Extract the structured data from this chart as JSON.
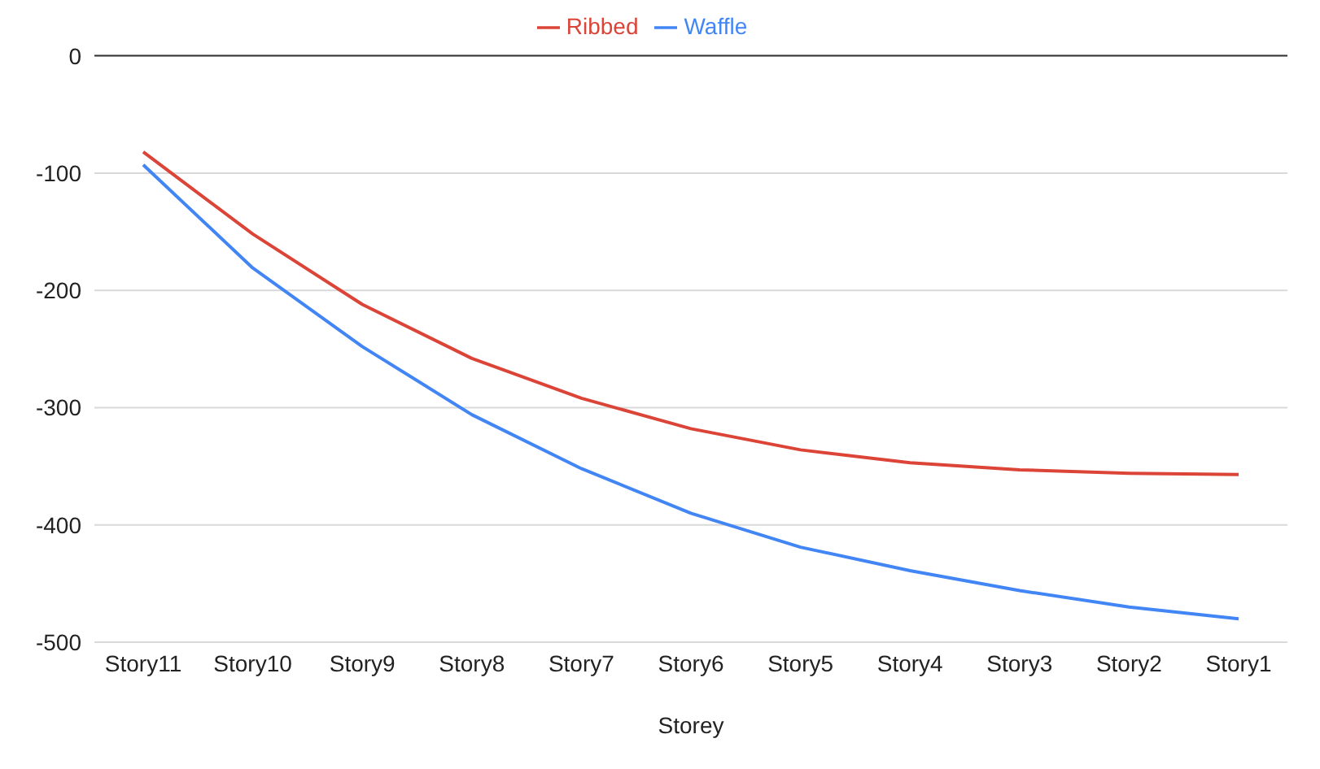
{
  "chart_data": {
    "type": "line",
    "xlabel": "Storey",
    "categories": [
      "Story11",
      "Story10",
      "Story9",
      "Story8",
      "Story7",
      "Story6",
      "Story5",
      "Story4",
      "Story3",
      "Story2",
      "Story1"
    ],
    "series": [
      {
        "name": "Waffle",
        "color": "#4285f4",
        "values": [
          -93,
          -181,
          -248,
          -306,
          -352,
          -390,
          -419,
          -439,
          -456,
          -470,
          -480
        ]
      },
      {
        "name": "Ribbed",
        "color": "#db4437",
        "values": [
          -82,
          -152,
          -212,
          -258,
          -292,
          -318,
          -336,
          -347,
          -353,
          -356,
          -357
        ]
      }
    ],
    "ylim": [
      -500,
      0
    ],
    "yticks": [
      -500,
      -400,
      -300,
      -200,
      -100,
      0
    ],
    "grid": "y",
    "legend": "top",
    "marker": "none"
  }
}
